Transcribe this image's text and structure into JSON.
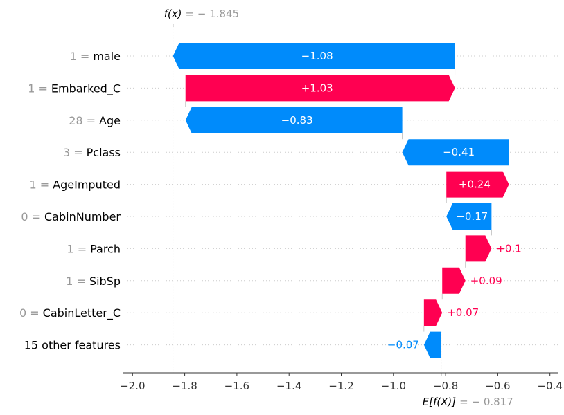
{
  "chart_data": {
    "type": "waterfall",
    "title": "",
    "xlabel": "",
    "ylabel": "",
    "fx": {
      "label": "f(x)",
      "value_text": "= − 1.845",
      "value": -1.845
    },
    "ex": {
      "label": "E[f(X)]",
      "value_text": "= − 0.817",
      "value": -0.817
    },
    "xlim": [
      -2.03,
      -0.37
    ],
    "xticks": [
      {
        "value": -2.0,
        "label": "−2.0"
      },
      {
        "value": -1.8,
        "label": "−1.8"
      },
      {
        "value": -1.6,
        "label": "−1.6"
      },
      {
        "value": -1.4,
        "label": "−1.4"
      },
      {
        "value": -1.2,
        "label": "−1.2"
      },
      {
        "value": -1.0,
        "label": "−1.0"
      },
      {
        "value": -0.8,
        "label": "−0.8"
      },
      {
        "value": -0.6,
        "label": "−0.6"
      },
      {
        "value": -0.4,
        "label": "−0.4"
      }
    ],
    "features": [
      {
        "value_text": "1 =",
        "name": "male",
        "start": -0.764,
        "end": -1.845,
        "label": "−1.08"
      },
      {
        "value_text": "1 =",
        "name": "Embarked_C",
        "start": -1.797,
        "end": -0.764,
        "label": "+1.03"
      },
      {
        "value_text": "28 =",
        "name": "Age",
        "start": -0.966,
        "end": -1.797,
        "label": "−0.83"
      },
      {
        "value_text": "3 =",
        "name": "Pclass",
        "start": -0.557,
        "end": -0.966,
        "label": "−0.41"
      },
      {
        "value_text": "1 =",
        "name": "AgeImputed",
        "start": -0.797,
        "end": -0.557,
        "label": "+0.24"
      },
      {
        "value_text": "0 =",
        "name": "CabinNumber",
        "start": -0.624,
        "end": -0.797,
        "label": "−0.17"
      },
      {
        "value_text": "1 =",
        "name": "Parch",
        "start": -0.724,
        "end": -0.624,
        "label": "+0.1"
      },
      {
        "value_text": "1 =",
        "name": "SibSp",
        "start": -0.813,
        "end": -0.724,
        "label": "+0.09"
      },
      {
        "value_text": "0 =",
        "name": "CabinLetter_C",
        "start": -0.883,
        "end": -0.813,
        "label": "+0.07"
      },
      {
        "value_text": "",
        "name": "15 other features",
        "start": -0.817,
        "end": -0.883,
        "label": "−0.07"
      }
    ]
  },
  "colors": {
    "positive": "#ff0051",
    "negative": "#008bfb",
    "muted": "#999999",
    "text": "#000000"
  }
}
